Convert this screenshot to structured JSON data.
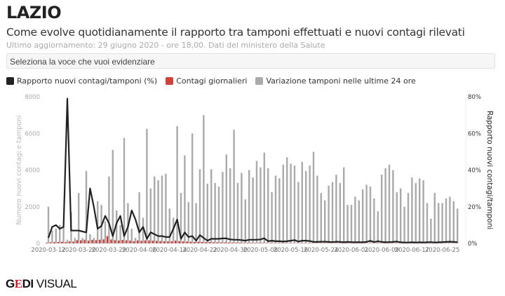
{
  "header": {
    "title": "LAZIO",
    "subtitle": "Come evolve quotidianamente il rapporto tra tamponi effettuati e nuovi contagi rilevati",
    "update": "Ultimo aggiornamento: 29 giugno 2020 - ore 18,00. Dati del ministero della Salute"
  },
  "select": {
    "placeholder": "Seleziona la voce che vuoi evidenziare"
  },
  "logo": {
    "text": "GEDI VISUAL"
  },
  "colors": {
    "line": "#222222",
    "contagi": "#d0413a",
    "tamponi": "#aaaaaa"
  },
  "chart_data": {
    "type": "bar+line",
    "legend": [
      "Rapporto nuovi contagi/tamponi (%)",
      "Contagi giornalieri",
      "Variazione tamponi nelle ultime 24 ore"
    ],
    "legend_position": "top-left",
    "ylabel": "Numero nuovi contagi e tamponi",
    "y2label": "Rapporto nuovi contagi/tamponi",
    "ylim": [
      0,
      8000
    ],
    "y2lim": [
      0,
      80
    ],
    "yticks": [
      "0",
      "2000",
      "4000",
      "6000",
      "8000"
    ],
    "y2ticks": [
      "0%",
      "20%",
      "40%",
      "60%",
      "80%"
    ],
    "xticks": [
      {
        "i": 0,
        "label": "2020-03-12"
      },
      {
        "i": 8,
        "label": "2020-03-20"
      },
      {
        "i": 16,
        "label": "2020-03-29"
      },
      {
        "i": 24,
        "label": "2020-04-06"
      },
      {
        "i": 32,
        "label": "2020-04-14"
      },
      {
        "i": 40,
        "label": "2020-04-22"
      },
      {
        "i": 48,
        "label": "2020-04-30"
      },
      {
        "i": 56,
        "label": "2020-05-08"
      },
      {
        "i": 64,
        "label": "2020-05-16"
      },
      {
        "i": 72,
        "label": "2020-05-24"
      },
      {
        "i": 80,
        "label": "2020-06-01"
      },
      {
        "i": 88,
        "label": "2020-06-09"
      },
      {
        "i": 96,
        "label": "2020-06-17"
      },
      {
        "i": 104,
        "label": "2020-06-25"
      }
    ],
    "tamponi": [
      2000,
      700,
      800,
      1000,
      900,
      200,
      1700,
      300,
      2750,
      300,
      3950,
      500,
      300,
      2300,
      2100,
      1200,
      3650,
      5100,
      1800,
      1000,
      5750,
      2200,
      800,
      300,
      2800,
      1400,
      6250,
      3000,
      3650,
      3450,
      3700,
      3800,
      1900,
      1400,
      6400,
      2750,
      4800,
      2250,
      6000,
      2200,
      4050,
      7000,
      3250,
      4050,
      3300,
      3100,
      3900,
      4850,
      4100,
      6200,
      3300,
      3850,
      2400,
      4000,
      3600,
      4500,
      4150,
      4950,
      4100,
      2800,
      3700,
      3550,
      4300,
      4700,
      4350,
      4250,
      3350,
      4450,
      3950,
      4250,
      5000,
      3700,
      2750,
      2350,
      3150,
      3350,
      3750,
      3300,
      4150,
      2100,
      2100,
      2550,
      2350,
      2950,
      3200,
      3100,
      2450,
      1750,
      3750,
      4100,
      4300,
      4000,
      2800,
      3000,
      2000,
      2750,
      3600,
      3300,
      3550,
      3450,
      2200,
      1350,
      2750,
      2200,
      2200,
      2450,
      2550,
      2300,
      1900
    ],
    "contagi": [
      40,
      60,
      70,
      80,
      90,
      70,
      110,
      100,
      180,
      170,
      200,
      150,
      190,
      180,
      200,
      220,
      400,
      210,
      180,
      160,
      190,
      170,
      150,
      120,
      160,
      140,
      170,
      160,
      150,
      140,
      130,
      120,
      110,
      120,
      150,
      130,
      110,
      100,
      90,
      80,
      90,
      80,
      70,
      70,
      60,
      60,
      50,
      50,
      45,
      45,
      40,
      40,
      35,
      35,
      30,
      30,
      30,
      28,
      25,
      25,
      25,
      22,
      22,
      20,
      20,
      18,
      18,
      15,
      15,
      15,
      12,
      12,
      12,
      10,
      10,
      10,
      10,
      10,
      10,
      10,
      8,
      8,
      8,
      8,
      8,
      10,
      12,
      10,
      8,
      8,
      8,
      8,
      8,
      10,
      8,
      8,
      8,
      8,
      8,
      8,
      8,
      8,
      8,
      8,
      8,
      10,
      10,
      10,
      8
    ],
    "rapporto": [
      3,
      9,
      10,
      8,
      9,
      79,
      7,
      7,
      7,
      6.5,
      6,
      30,
      20,
      8,
      9.5,
      15,
      11,
      4,
      11,
      15,
      4,
      9,
      18,
      13,
      6,
      9,
      2.5,
      6,
      5,
      4,
      4,
      3.5,
      3.5,
      8,
      13,
      2.5,
      6,
      3.5,
      4,
      1.5,
      4.5,
      3,
      1.5,
      2.5,
      2.5,
      2.5,
      2.7,
      2.7,
      2.2,
      2,
      2,
      1.8,
      1.5,
      2,
      2,
      2,
      2.2,
      2.8,
      1.2,
      1.5,
      1.2,
      1.2,
      1,
      1.2,
      1.5,
      1.8,
      1,
      1.5,
      1.5,
      1.3,
      0.8,
      0.8,
      0.9,
      0.9,
      0.8,
      0.7,
      0.9,
      0.8,
      0.6,
      0.8,
      0.7,
      0.6,
      0.7,
      0.6,
      0.8,
      1.4,
      0.7,
      1.2,
      0.8,
      0.6,
      0.7,
      0.8,
      1,
      0.6,
      0.5,
      0.5,
      0.6,
      0.5,
      0.6,
      0.5,
      0.6,
      0.7,
      0.5,
      0.6,
      0.7,
      0.8,
      0.9,
      0.8,
      0.7
    ]
  }
}
